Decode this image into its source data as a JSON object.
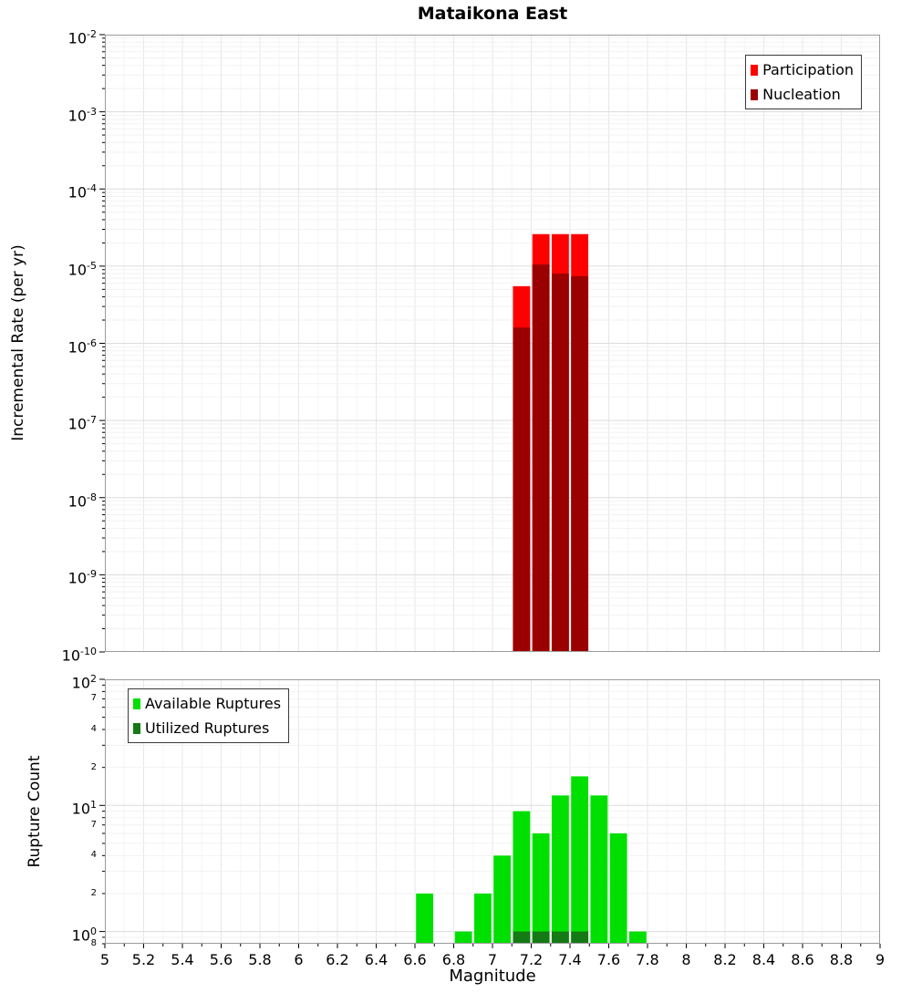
{
  "colors": {
    "participation": "#ff0000",
    "nucleation": "#9b0000",
    "available": "#00e000",
    "utilized": "#147a14",
    "grid_major": "#dcdcdc",
    "grid_minor": "#f2f2f2",
    "grid_x_major": "#e7e7e7",
    "grid_x_minor": "#f5f5f5",
    "plot_border": "#9a9a9a"
  },
  "chart_data": [
    {
      "type": "bar",
      "title": "Mataikona East",
      "xlabel": "Magnitude",
      "ylabel": "Incremental Rate (per yr)",
      "xlim": [
        5,
        9
      ],
      "ylog": true,
      "ylim": [
        1e-10,
        0.01
      ],
      "bin_width": 0.1,
      "grid": true,
      "legend_position": "top-right",
      "ytick_exponents": [
        -2,
        -3,
        -4,
        -5,
        -6,
        -7,
        -8,
        -9,
        -10
      ],
      "xticks": [],
      "series": [
        {
          "name": "Participation",
          "color": "#ff0000",
          "x": [
            7.15,
            7.25,
            7.35,
            7.45
          ],
          "values": [
            5.5e-06,
            2.6e-05,
            2.6e-05,
            2.6e-05
          ]
        },
        {
          "name": "Nucleation",
          "color": "#9b0000",
          "x": [
            7.15,
            7.25,
            7.35,
            7.45
          ],
          "values": [
            1.6e-06,
            1.05e-05,
            8e-06,
            7.4e-06
          ]
        }
      ]
    },
    {
      "type": "bar",
      "title": "",
      "xlabel": "Magnitude",
      "ylabel": "Rupture Count",
      "xlim": [
        5,
        9
      ],
      "ylog": true,
      "ylim": [
        0.8,
        100
      ],
      "bin_width": 0.1,
      "grid": true,
      "legend_position": "top-left",
      "ytick_exponents": [
        2,
        1,
        0
      ],
      "ytick_minor": [
        {
          "value": 70,
          "label": "7"
        },
        {
          "value": 40,
          "label": "4"
        },
        {
          "value": 20,
          "label": "2"
        },
        {
          "value": 7,
          "label": "7"
        },
        {
          "value": 4,
          "label": "4"
        },
        {
          "value": 2,
          "label": "2"
        },
        {
          "value": 0.8,
          "label": "8"
        }
      ],
      "xticks": [
        "5",
        "5.2",
        "5.4",
        "5.6",
        "5.8",
        "6",
        "6.2",
        "6.4",
        "6.6",
        "6.8",
        "7",
        "7.2",
        "7.4",
        "7.6",
        "7.8",
        "8",
        "8.2",
        "8.4",
        "8.6",
        "8.8",
        "9"
      ],
      "series": [
        {
          "name": "Available Ruptures",
          "color": "#00e000",
          "x": [
            6.65,
            6.85,
            6.95,
            7.05,
            7.15,
            7.25,
            7.35,
            7.45,
            7.55,
            7.65,
            7.75
          ],
          "values": [
            2,
            1,
            2,
            4,
            9,
            6,
            12,
            17,
            12,
            6,
            1
          ]
        },
        {
          "name": "Utilized Ruptures",
          "color": "#147a14",
          "x": [
            7.15,
            7.25,
            7.35,
            7.45
          ],
          "values": [
            1,
            1,
            1,
            1
          ]
        }
      ]
    }
  ]
}
